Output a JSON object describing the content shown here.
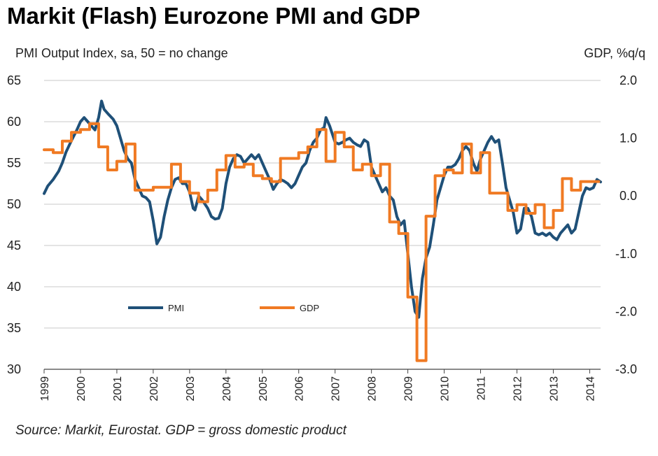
{
  "chart_data": {
    "type": "line",
    "title": "Markit (Flash) Eurozone PMI and GDP",
    "ylabel": "PMI Output  Index, sa, 50 = no change",
    "y2label": "GDP, %q/q",
    "source": "Source: Markit, Eurostat. GDP = gross domestic product",
    "ylim": [
      30,
      65
    ],
    "y_ticks": [
      "65",
      "60",
      "55",
      "50",
      "45",
      "40",
      "35",
      "30"
    ],
    "y2lim": [
      -3.0,
      2.0
    ],
    "y2_ticks": [
      "2.0",
      "1.0",
      "0.0",
      "-1.0",
      "-2.0",
      "-3.0"
    ],
    "xlim": [
      1999,
      2014.3
    ],
    "x_ticks": [
      "1999",
      "2000",
      "2001",
      "2002",
      "2003",
      "2004",
      "2005",
      "2006",
      "2007",
      "2008",
      "2009",
      "2010",
      "2011",
      "2012",
      "2013",
      "2014"
    ],
    "grid": true,
    "legend_position": "lower-left inside plot",
    "series": [
      {
        "name": "PMI",
        "axis": "left",
        "color": "#1f5078",
        "points": [
          [
            1999.0,
            51.3
          ],
          [
            1999.1,
            52.2
          ],
          [
            1999.25,
            53.0
          ],
          [
            1999.4,
            54.0
          ],
          [
            1999.5,
            55.0
          ],
          [
            1999.6,
            56.3
          ],
          [
            1999.75,
            57.7
          ],
          [
            1999.9,
            59.0
          ],
          [
            2000.0,
            60.0
          ],
          [
            2000.1,
            60.5
          ],
          [
            2000.2,
            60.0
          ],
          [
            2000.3,
            59.5
          ],
          [
            2000.4,
            59.0
          ],
          [
            2000.5,
            60.5
          ],
          [
            2000.58,
            62.5
          ],
          [
            2000.65,
            61.5
          ],
          [
            2000.75,
            61.0
          ],
          [
            2000.9,
            60.3
          ],
          [
            2001.0,
            59.5
          ],
          [
            2001.1,
            58.0
          ],
          [
            2001.2,
            56.5
          ],
          [
            2001.3,
            55.5
          ],
          [
            2001.4,
            55.0
          ],
          [
            2001.5,
            53.0
          ],
          [
            2001.6,
            52.0
          ],
          [
            2001.7,
            51.0
          ],
          [
            2001.8,
            50.8
          ],
          [
            2001.9,
            50.3
          ],
          [
            2002.0,
            48.0
          ],
          [
            2002.1,
            45.2
          ],
          [
            2002.2,
            46.0
          ],
          [
            2002.3,
            48.5
          ],
          [
            2002.4,
            50.5
          ],
          [
            2002.5,
            52.0
          ],
          [
            2002.6,
            53.0
          ],
          [
            2002.7,
            53.2
          ],
          [
            2002.8,
            52.5
          ],
          [
            2002.9,
            52.5
          ],
          [
            2003.0,
            51.5
          ],
          [
            2003.1,
            49.5
          ],
          [
            2003.15,
            49.3
          ],
          [
            2003.25,
            51.0
          ],
          [
            2003.35,
            50.5
          ],
          [
            2003.5,
            49.5
          ],
          [
            2003.6,
            48.5
          ],
          [
            2003.7,
            48.2
          ],
          [
            2003.8,
            48.3
          ],
          [
            2003.9,
            49.5
          ],
          [
            2004.0,
            52.5
          ],
          [
            2004.1,
            54.5
          ],
          [
            2004.2,
            55.5
          ],
          [
            2004.3,
            56.0
          ],
          [
            2004.4,
            55.8
          ],
          [
            2004.5,
            55.0
          ],
          [
            2004.6,
            55.5
          ],
          [
            2004.7,
            56.0
          ],
          [
            2004.8,
            55.5
          ],
          [
            2004.9,
            56.0
          ],
          [
            2005.0,
            55.0
          ],
          [
            2005.1,
            54.0
          ],
          [
            2005.2,
            53.0
          ],
          [
            2005.3,
            51.8
          ],
          [
            2005.4,
            52.5
          ],
          [
            2005.5,
            53.0
          ],
          [
            2005.6,
            52.8
          ],
          [
            2005.7,
            52.5
          ],
          [
            2005.8,
            52.0
          ],
          [
            2005.9,
            52.5
          ],
          [
            2006.0,
            53.5
          ],
          [
            2006.1,
            54.5
          ],
          [
            2006.2,
            55.0
          ],
          [
            2006.3,
            56.5
          ],
          [
            2006.4,
            57.5
          ],
          [
            2006.5,
            58.0
          ],
          [
            2006.6,
            59.0
          ],
          [
            2006.7,
            59.3
          ],
          [
            2006.75,
            60.5
          ],
          [
            2006.85,
            59.5
          ],
          [
            2007.0,
            57.5
          ],
          [
            2007.1,
            57.3
          ],
          [
            2007.2,
            57.5
          ],
          [
            2007.3,
            57.8
          ],
          [
            2007.4,
            58.0
          ],
          [
            2007.5,
            57.5
          ],
          [
            2007.6,
            57.2
          ],
          [
            2007.7,
            57.0
          ],
          [
            2007.8,
            57.8
          ],
          [
            2007.9,
            57.5
          ],
          [
            2008.0,
            54.5
          ],
          [
            2008.1,
            53.5
          ],
          [
            2008.2,
            52.5
          ],
          [
            2008.3,
            51.5
          ],
          [
            2008.4,
            52.0
          ],
          [
            2008.5,
            51.0
          ],
          [
            2008.6,
            50.5
          ],
          [
            2008.7,
            48.5
          ],
          [
            2008.8,
            47.5
          ],
          [
            2008.9,
            48.0
          ],
          [
            2009.0,
            44.0
          ],
          [
            2009.1,
            40.0
          ],
          [
            2009.2,
            37.0
          ],
          [
            2009.3,
            36.3
          ],
          [
            2009.4,
            41.0
          ],
          [
            2009.5,
            43.5
          ],
          [
            2009.6,
            44.8
          ],
          [
            2009.7,
            47.5
          ],
          [
            2009.8,
            50.5
          ],
          [
            2009.9,
            52.0
          ],
          [
            2010.0,
            53.5
          ],
          [
            2010.1,
            54.5
          ],
          [
            2010.2,
            54.5
          ],
          [
            2010.3,
            54.8
          ],
          [
            2010.4,
            55.5
          ],
          [
            2010.5,
            56.5
          ],
          [
            2010.6,
            57.0
          ],
          [
            2010.7,
            56.5
          ],
          [
            2010.8,
            55.0
          ],
          [
            2010.9,
            54.0
          ],
          [
            2011.0,
            55.5
          ],
          [
            2011.1,
            56.5
          ],
          [
            2011.2,
            57.5
          ],
          [
            2011.3,
            58.2
          ],
          [
            2011.4,
            57.5
          ],
          [
            2011.5,
            57.8
          ],
          [
            2011.6,
            55.0
          ],
          [
            2011.7,
            52.0
          ],
          [
            2011.8,
            50.5
          ],
          [
            2011.9,
            49.0
          ],
          [
            2012.0,
            46.5
          ],
          [
            2012.1,
            47.0
          ],
          [
            2012.2,
            49.5
          ],
          [
            2012.3,
            49.5
          ],
          [
            2012.4,
            48.5
          ],
          [
            2012.5,
            46.5
          ],
          [
            2012.6,
            46.3
          ],
          [
            2012.7,
            46.5
          ],
          [
            2012.8,
            46.2
          ],
          [
            2012.9,
            46.5
          ],
          [
            2013.0,
            46.0
          ],
          [
            2013.1,
            45.7
          ],
          [
            2013.2,
            46.5
          ],
          [
            2013.3,
            47.0
          ],
          [
            2013.4,
            47.5
          ],
          [
            2013.5,
            46.5
          ],
          [
            2013.6,
            47.0
          ],
          [
            2013.7,
            49.0
          ],
          [
            2013.8,
            51.0
          ],
          [
            2013.9,
            52.0
          ],
          [
            2014.0,
            51.8
          ],
          [
            2014.1,
            52.0
          ],
          [
            2014.2,
            53.0
          ],
          [
            2014.3,
            52.7
          ]
        ]
      },
      {
        "name": "GDP",
        "axis": "right",
        "color": "#f07a23",
        "points": [
          [
            1999.0,
            0.8
          ],
          [
            1999.25,
            0.8
          ],
          [
            1999.25,
            0.75
          ],
          [
            1999.5,
            0.75
          ],
          [
            1999.5,
            0.95
          ],
          [
            1999.75,
            0.95
          ],
          [
            1999.75,
            1.1
          ],
          [
            2000.0,
            1.1
          ],
          [
            2000.0,
            1.15
          ],
          [
            2000.25,
            1.15
          ],
          [
            2000.25,
            1.25
          ],
          [
            2000.5,
            1.25
          ],
          [
            2000.5,
            0.85
          ],
          [
            2000.75,
            0.85
          ],
          [
            2000.75,
            0.45
          ],
          [
            2001.0,
            0.45
          ],
          [
            2001.0,
            0.6
          ],
          [
            2001.25,
            0.6
          ],
          [
            2001.25,
            0.9
          ],
          [
            2001.5,
            0.9
          ],
          [
            2001.5,
            0.1
          ],
          [
            2001.75,
            0.1
          ],
          [
            2001.75,
            0.1
          ],
          [
            2002.0,
            0.1
          ],
          [
            2002.0,
            0.15
          ],
          [
            2002.25,
            0.15
          ],
          [
            2002.25,
            0.15
          ],
          [
            2002.5,
            0.15
          ],
          [
            2002.5,
            0.55
          ],
          [
            2002.75,
            0.55
          ],
          [
            2002.75,
            0.25
          ],
          [
            2003.0,
            0.25
          ],
          [
            2003.0,
            0.05
          ],
          [
            2003.25,
            0.05
          ],
          [
            2003.25,
            -0.1
          ],
          [
            2003.5,
            -0.1
          ],
          [
            2003.5,
            0.1
          ],
          [
            2003.75,
            0.1
          ],
          [
            2003.75,
            0.45
          ],
          [
            2004.0,
            0.45
          ],
          [
            2004.0,
            0.7
          ],
          [
            2004.25,
            0.7
          ],
          [
            2004.25,
            0.5
          ],
          [
            2004.5,
            0.5
          ],
          [
            2004.5,
            0.55
          ],
          [
            2004.75,
            0.55
          ],
          [
            2004.75,
            0.35
          ],
          [
            2005.0,
            0.35
          ],
          [
            2005.0,
            0.3
          ],
          [
            2005.25,
            0.3
          ],
          [
            2005.25,
            0.25
          ],
          [
            2005.5,
            0.25
          ],
          [
            2005.5,
            0.65
          ],
          [
            2005.75,
            0.65
          ],
          [
            2005.75,
            0.65
          ],
          [
            2006.0,
            0.65
          ],
          [
            2006.0,
            0.75
          ],
          [
            2006.25,
            0.75
          ],
          [
            2006.25,
            0.85
          ],
          [
            2006.5,
            0.85
          ],
          [
            2006.5,
            1.15
          ],
          [
            2006.75,
            1.15
          ],
          [
            2006.75,
            0.6
          ],
          [
            2007.0,
            0.6
          ],
          [
            2007.0,
            1.1
          ],
          [
            2007.25,
            1.1
          ],
          [
            2007.25,
            0.85
          ],
          [
            2007.5,
            0.85
          ],
          [
            2007.5,
            0.45
          ],
          [
            2007.75,
            0.45
          ],
          [
            2007.75,
            0.55
          ],
          [
            2008.0,
            0.55
          ],
          [
            2008.0,
            0.35
          ],
          [
            2008.25,
            0.35
          ],
          [
            2008.25,
            0.55
          ],
          [
            2008.5,
            0.55
          ],
          [
            2008.5,
            -0.45
          ],
          [
            2008.75,
            -0.45
          ],
          [
            2008.75,
            -0.65
          ],
          [
            2009.0,
            -0.65
          ],
          [
            2009.0,
            -1.75
          ],
          [
            2009.25,
            -1.75
          ],
          [
            2009.25,
            -2.85
          ],
          [
            2009.5,
            -2.85
          ],
          [
            2009.5,
            -0.35
          ],
          [
            2009.75,
            -0.35
          ],
          [
            2009.75,
            0.35
          ],
          [
            2010.0,
            0.35
          ],
          [
            2010.0,
            0.45
          ],
          [
            2010.25,
            0.45
          ],
          [
            2010.25,
            0.4
          ],
          [
            2010.5,
            0.4
          ],
          [
            2010.5,
            0.9
          ],
          [
            2010.75,
            0.9
          ],
          [
            2010.75,
            0.4
          ],
          [
            2011.0,
            0.4
          ],
          [
            2011.0,
            0.75
          ],
          [
            2011.25,
            0.75
          ],
          [
            2011.25,
            0.05
          ],
          [
            2011.5,
            0.05
          ],
          [
            2011.5,
            0.05
          ],
          [
            2011.75,
            0.05
          ],
          [
            2011.75,
            -0.25
          ],
          [
            2012.0,
            -0.25
          ],
          [
            2012.0,
            -0.15
          ],
          [
            2012.25,
            -0.15
          ],
          [
            2012.25,
            -0.3
          ],
          [
            2012.5,
            -0.3
          ],
          [
            2012.5,
            -0.15
          ],
          [
            2012.75,
            -0.15
          ],
          [
            2012.75,
            -0.55
          ],
          [
            2013.0,
            -0.55
          ],
          [
            2013.0,
            -0.25
          ],
          [
            2013.25,
            -0.25
          ],
          [
            2013.25,
            0.3
          ],
          [
            2013.5,
            0.3
          ],
          [
            2013.5,
            0.1
          ],
          [
            2013.75,
            0.1
          ],
          [
            2013.75,
            0.25
          ],
          [
            2014.0,
            0.25
          ],
          [
            2014.0,
            0.25
          ],
          [
            2014.25,
            0.25
          ]
        ]
      }
    ]
  }
}
